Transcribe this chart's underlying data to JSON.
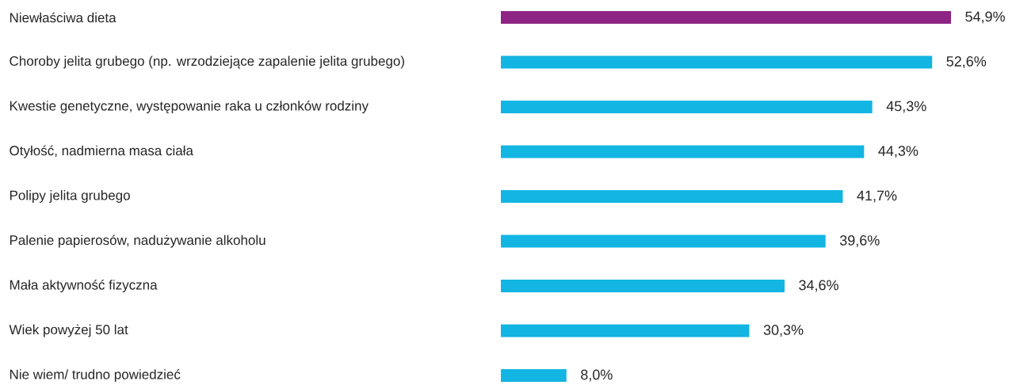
{
  "chart_data": {
    "type": "bar",
    "orientation": "horizontal",
    "categories": [
      "Niewłaściwa dieta",
      "Choroby jelita grubego (np. wrzodziejące zapalenie jelita grubego)",
      "Kwestie genetyczne, występowanie raka u członków rodziny",
      "Otyłość, nadmierna masa ciała",
      "Polipy jelita grubego",
      "Palenie papierosów, nadużywanie alkoholu",
      "Mała aktywność fizyczna",
      "Wiek powyżej 50 lat",
      "Nie wiem/ trudno powiedzieć"
    ],
    "values": [
      54.9,
      52.6,
      45.3,
      44.3,
      41.7,
      39.6,
      34.6,
      30.3,
      8.0
    ],
    "value_labels": [
      "54,9%",
      "52,6%",
      "45,3%",
      "44,3%",
      "41,7%",
      "39,6%",
      "34,6%",
      "30,3%",
      "8,0%"
    ],
    "colors": [
      "#8e2585",
      "#13b5e2",
      "#13b5e2",
      "#13b5e2",
      "#13b5e2",
      "#13b5e2",
      "#13b5e2",
      "#13b5e2",
      "#13b5e2"
    ]
  }
}
